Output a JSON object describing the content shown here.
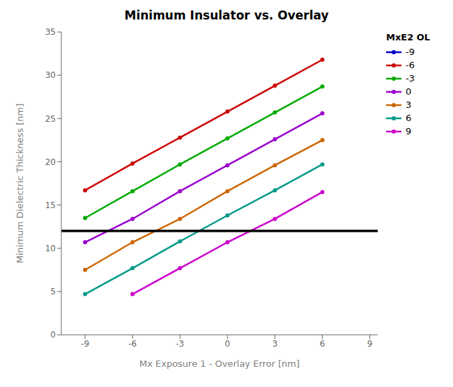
{
  "chart_data": {
    "type": "line",
    "title": "Minimum Insulator vs. Overlay",
    "x_label": "Mx Exposure 1 - Overlay Error [nm]",
    "y_label": "Minimum Dielectric Thickness [nm]",
    "legend_title": "MxE2 OL",
    "legend": "right",
    "grid": false,
    "marker": "o",
    "hline": {
      "y": 12,
      "color": "#000000"
    },
    "xlim": [
      -10.5,
      9.5
    ],
    "ylim": [
      0,
      35
    ],
    "xticks": [
      -9,
      -6,
      -3,
      0,
      3,
      6,
      9
    ],
    "yticks": [
      0,
      5,
      10,
      15,
      20,
      25,
      30,
      35
    ],
    "series": [
      {
        "name": "-9",
        "color": "#0000cc",
        "x": [],
        "values": []
      },
      {
        "name": "-6",
        "color": "#cc0000",
        "x": [
          -9,
          -6,
          -3,
          0,
          3,
          6
        ],
        "values": [
          16.7,
          19.8,
          22.8,
          25.8,
          28.8,
          31.8
        ]
      },
      {
        "name": "-3",
        "color": "#00aa00",
        "x": [
          -9,
          -6,
          -3,
          0,
          3,
          6
        ],
        "values": [
          13.5,
          16.6,
          19.7,
          22.7,
          25.7,
          28.7
        ]
      },
      {
        "name": "0",
        "color": "#9900cc",
        "x": [
          -9,
          -6,
          -3,
          0,
          3,
          6
        ],
        "values": [
          10.7,
          13.4,
          16.6,
          19.6,
          22.6,
          25.6
        ]
      },
      {
        "name": "3",
        "color": "#cc6600",
        "x": [
          -9,
          -6,
          -3,
          0,
          3,
          6
        ],
        "values": [
          7.5,
          10.7,
          13.4,
          16.6,
          19.6,
          22.5
        ]
      },
      {
        "name": "6",
        "color": "#009988",
        "x": [
          -9,
          -6,
          -3,
          0,
          3,
          6
        ],
        "values": [
          4.7,
          7.7,
          10.8,
          13.8,
          16.7,
          19.7
        ]
      },
      {
        "name": "9",
        "color": "#cc00cc",
        "x": [
          -6,
          -3,
          0,
          3,
          6
        ],
        "values": [
          4.7,
          7.7,
          10.7,
          13.4,
          16.5
        ]
      }
    ]
  }
}
